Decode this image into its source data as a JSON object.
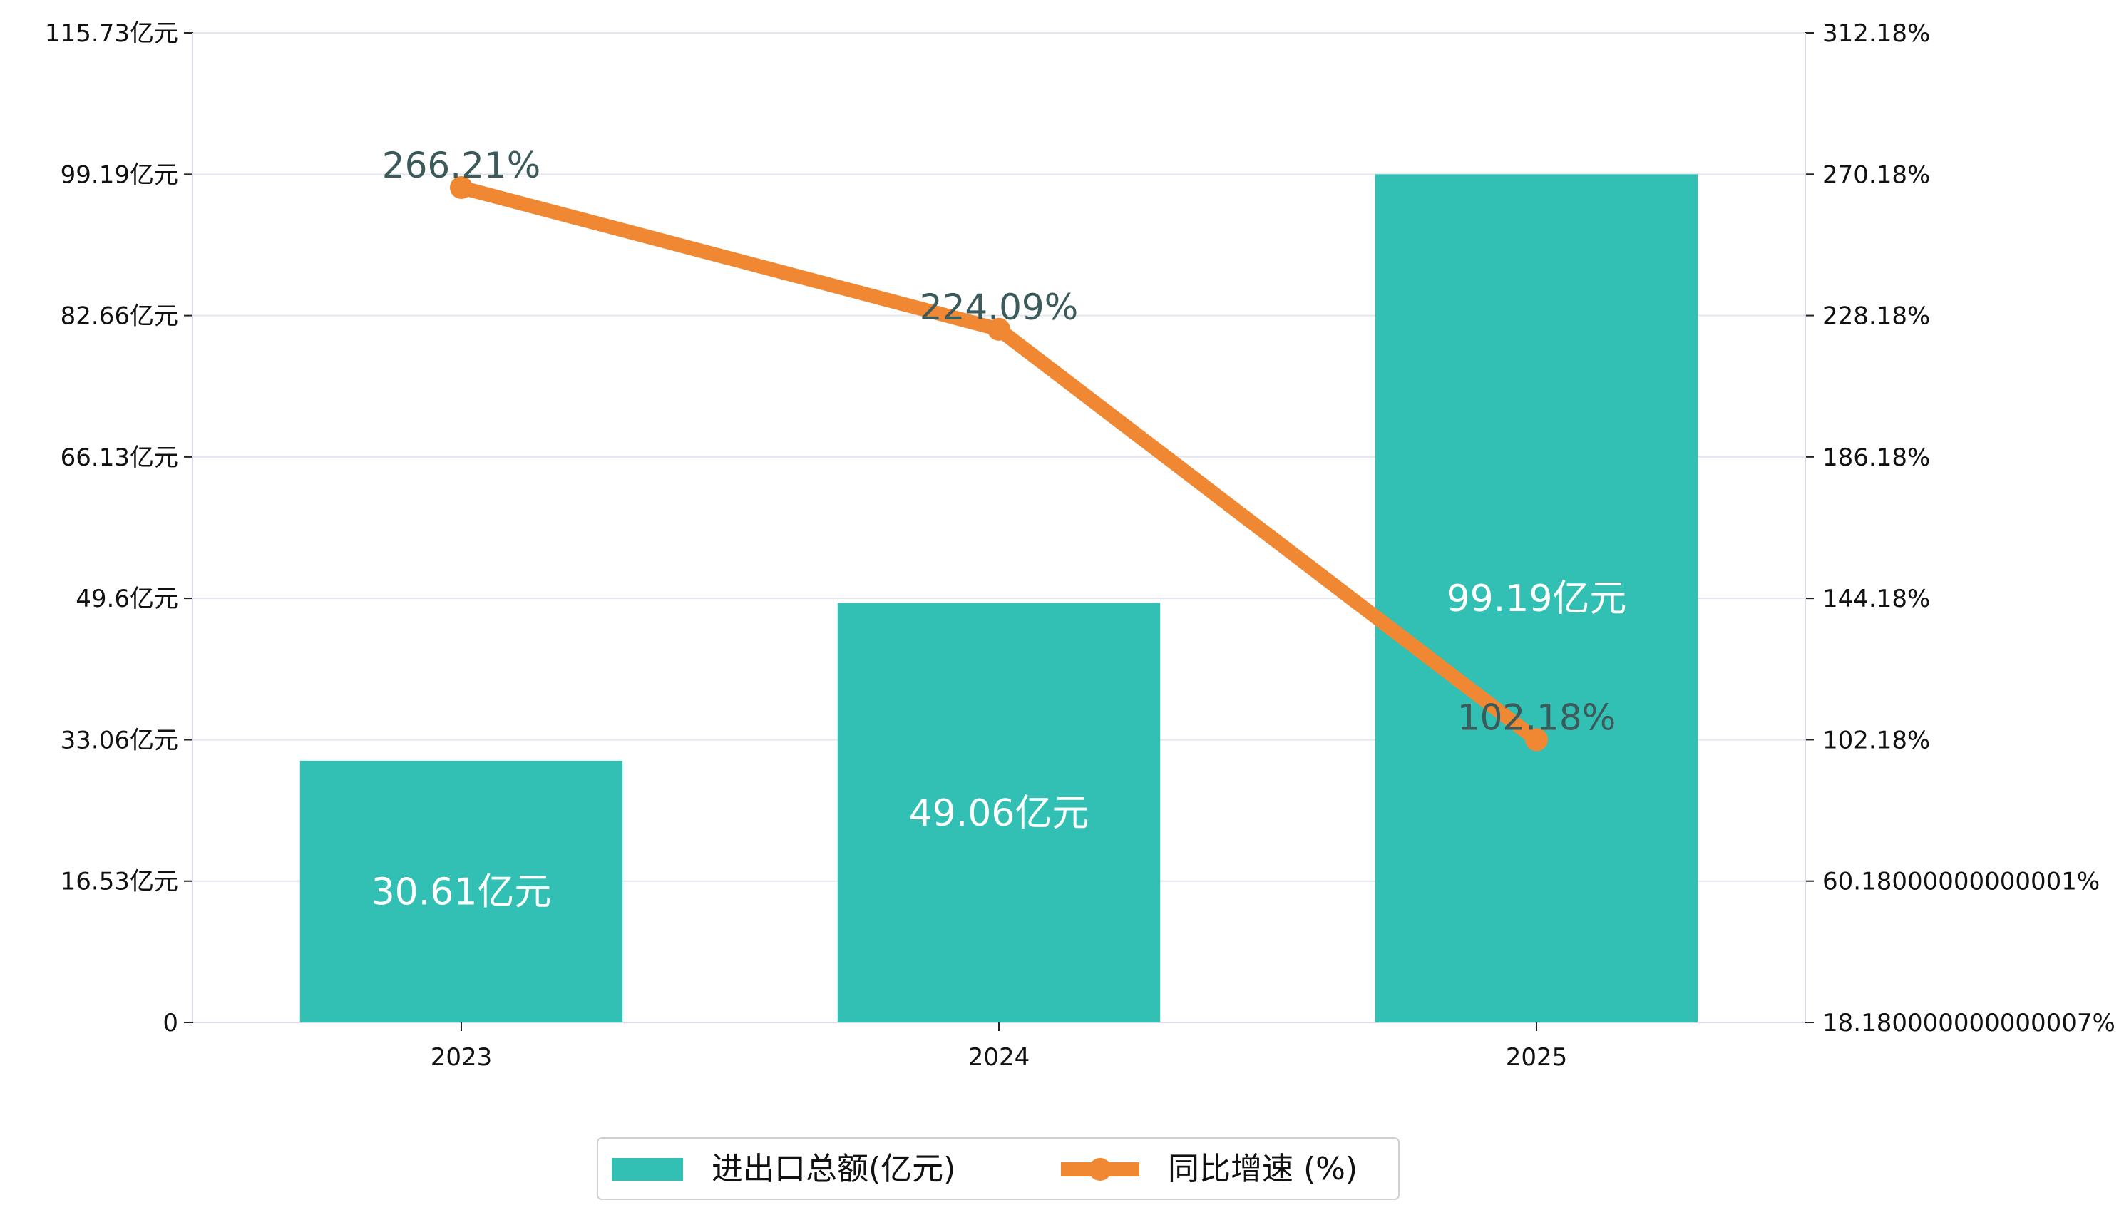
{
  "chart_data": {
    "type": "bar",
    "categories": [
      "2023",
      "2024",
      "2025"
    ],
    "series": [
      {
        "name": "进出口总额(亿元)",
        "type": "bar",
        "axis": "left",
        "values": [
          30.61,
          49.06,
          99.19
        ],
        "labels": [
          "30.61亿元",
          "49.06亿元",
          "99.19亿元"
        ],
        "color": "#31c0b3"
      },
      {
        "name": "同比增速 (%)",
        "type": "line",
        "axis": "right",
        "values": [
          266.21,
          224.09,
          102.18
        ],
        "labels": [
          "266.21%",
          "224.09%",
          "102.18%"
        ],
        "color": "#f08833"
      }
    ],
    "left_axis": {
      "ylim": [
        0,
        115.73
      ],
      "ticks": [
        0,
        16.53,
        33.06,
        49.6,
        66.13,
        82.66,
        99.19,
        115.73
      ],
      "tick_labels": [
        "0",
        "16.53亿元",
        "33.06亿元",
        "49.6亿元",
        "66.13亿元",
        "82.66亿元",
        "99.19亿元",
        "115.73亿元"
      ]
    },
    "right_axis": {
      "ylim": [
        18.180000000000007,
        312.18
      ],
      "ticks": [
        18.180000000000007,
        60.18000000000001,
        102.18,
        144.18,
        186.18,
        228.18,
        270.18,
        312.18
      ],
      "tick_labels": [
        "18.180000000000007%",
        "60.18000000000001%",
        "102.18%",
        "144.18%",
        "186.18%",
        "228.18%",
        "270.18%",
        "312.18%"
      ]
    },
    "grid": true,
    "legend": {
      "placement": "bottom-center",
      "entries": [
        "进出口总额(亿元)",
        "同比增速 (%)"
      ]
    },
    "colors": {
      "grid": "#e3e5ef",
      "axis": "#d8dbe8",
      "bar": "#31c0b3",
      "line": "#f08833",
      "bar_label": "#ffffff",
      "line_label": "#3d5a5a"
    }
  }
}
